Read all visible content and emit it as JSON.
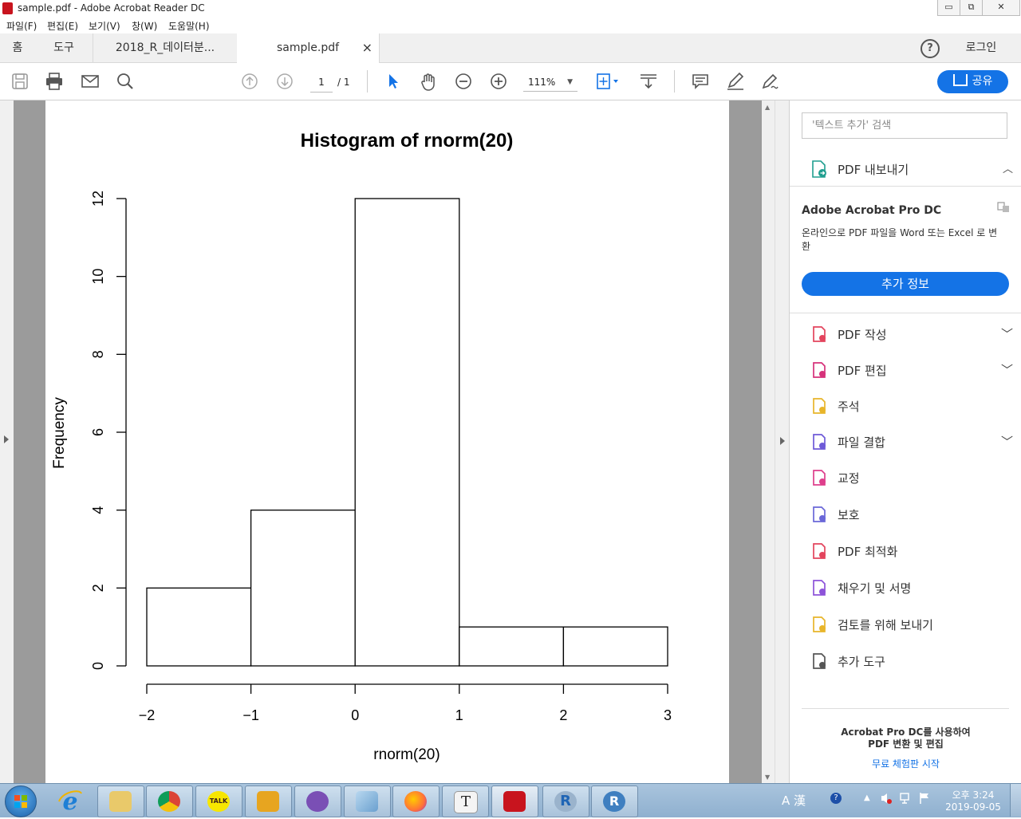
{
  "window": {
    "title": "sample.pdf - Adobe Acrobat Reader DC",
    "min": "▭",
    "max": "⧉",
    "close": "✕"
  },
  "menu": [
    "파일(F)",
    "편집(E)",
    "보기(V)",
    "창(W)",
    "도움말(H)"
  ],
  "tabs": {
    "home": "홈",
    "tools": "도구",
    "doc1": "2018_R_데이터분...",
    "doc2": "sample.pdf",
    "close": "×",
    "help": "?",
    "login": "로그인"
  },
  "toolbar": {
    "page_current": "1",
    "page_total": "/ 1",
    "zoom": "111%",
    "share": "공유"
  },
  "right_panel": {
    "search_placeholder": "'텍스트 추가' 검색",
    "export": "PDF 내보내기",
    "promo_title": "Adobe Acrobat Pro DC",
    "promo_text": "온라인으로 PDF 파일을 Word 또는 Excel 로 변환",
    "promo_button": "추가 정보",
    "tools": [
      {
        "label": "PDF 작성",
        "icon": "create-pdf-icon",
        "color": "#e3445d",
        "chevron": true
      },
      {
        "label": "PDF 편집",
        "icon": "edit-pdf-icon",
        "color": "#d6317a",
        "chevron": true
      },
      {
        "label": "주석",
        "icon": "comment-icon",
        "color": "#e8b52a",
        "chevron": false
      },
      {
        "label": "파일 결합",
        "icon": "combine-files-icon",
        "color": "#6e5ad8",
        "chevron": true
      },
      {
        "label": "교정",
        "icon": "redact-icon",
        "color": "#de3f8c",
        "chevron": false
      },
      {
        "label": "보호",
        "icon": "protect-icon",
        "color": "#6a67d8",
        "chevron": false
      },
      {
        "label": "PDF 최적화",
        "icon": "optimize-pdf-icon",
        "color": "#e3445d",
        "chevron": false
      },
      {
        "label": "채우기 및 서명",
        "icon": "fill-sign-icon",
        "color": "#8d53d9",
        "chevron": false
      },
      {
        "label": "검토를 위해 보내기",
        "icon": "send-review-icon",
        "color": "#e8b52a",
        "chevron": false
      },
      {
        "label": "추가 도구",
        "icon": "more-tools-icon",
        "color": "#555555",
        "chevron": false
      }
    ],
    "footer_line1": "Acrobat Pro DC를 사용하여",
    "footer_line2": "PDF 변환 및 편집",
    "footer_link": "무료 체험판 시작"
  },
  "taskbar": {
    "ime": "A 漢",
    "clock_time": "오후 3:24",
    "clock_date": "2019-09-05"
  },
  "chart_data": {
    "type": "bar",
    "title": "Histogram of rnorm(20)",
    "xlabel": "rnorm(20)",
    "ylabel": "Frequency",
    "bins": [
      [
        -2,
        -1
      ],
      [
        -1,
        0
      ],
      [
        0,
        1
      ],
      [
        1,
        2
      ],
      [
        2,
        3
      ]
    ],
    "values": [
      2,
      4,
      12,
      1,
      1
    ],
    "xticks": [
      -2,
      -1,
      0,
      1,
      2,
      3
    ],
    "xtick_labels": [
      "−2",
      "−1",
      "0",
      "1",
      "2",
      "3"
    ],
    "yticks": [
      0,
      2,
      4,
      6,
      8,
      10,
      12
    ],
    "xlim": [
      -2,
      3
    ],
    "ylim": [
      0,
      12
    ],
    "grid": false
  }
}
